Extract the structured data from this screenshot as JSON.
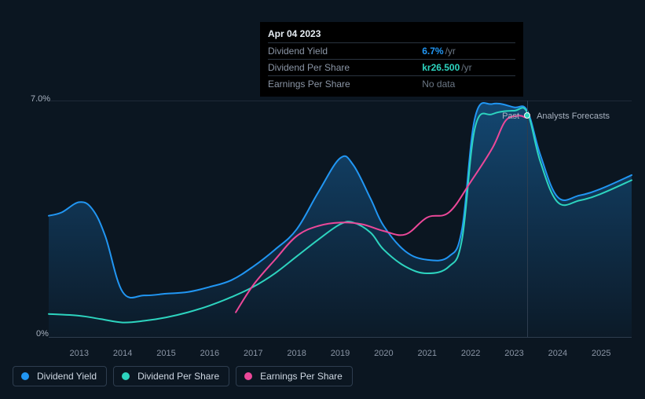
{
  "tooltip": {
    "date": "Apr 04 2023",
    "rows": [
      {
        "label": "Dividend Yield",
        "value": "6.7%",
        "unit": "/yr",
        "color": "#2196f3"
      },
      {
        "label": "Dividend Per Share",
        "value": "kr26.500",
        "unit": "/yr",
        "color": "#2dd4bf"
      },
      {
        "label": "Earnings Per Share",
        "value": "No data",
        "unit": "",
        "color": "#6b7785"
      }
    ]
  },
  "chart": {
    "type": "line-area",
    "background": "#0b1621",
    "grid_color": "#1f2a38",
    "axis_font_color": "#8a95a5",
    "ylim": [
      0,
      7
    ],
    "y_ticks": [
      {
        "v": 0,
        "label": "0%"
      },
      {
        "v": 7,
        "label": "7.0%"
      }
    ],
    "x_years": [
      2013,
      2014,
      2015,
      2016,
      2017,
      2018,
      2019,
      2020,
      2021,
      2022,
      2023,
      2024,
      2025
    ],
    "x_domain": [
      2012.3,
      2025.7
    ],
    "divider_x": 2023.3,
    "past_label": "Past",
    "future_label": "Analysts Forecasts",
    "series": [
      {
        "name": "Dividend Yield",
        "color": "#2196f3",
        "fill": true,
        "fill_gradient": [
          "rgba(33,150,243,0.35)",
          "rgba(33,150,243,0.02)"
        ],
        "line_width": 2,
        "points": [
          [
            2012.3,
            3.6
          ],
          [
            2012.6,
            3.7
          ],
          [
            2013.0,
            4.0
          ],
          [
            2013.3,
            3.8
          ],
          [
            2013.6,
            3.0
          ],
          [
            2014.0,
            1.35
          ],
          [
            2014.5,
            1.25
          ],
          [
            2015.0,
            1.3
          ],
          [
            2015.5,
            1.35
          ],
          [
            2016.0,
            1.5
          ],
          [
            2016.5,
            1.7
          ],
          [
            2017.0,
            2.1
          ],
          [
            2017.5,
            2.6
          ],
          [
            2018.0,
            3.2
          ],
          [
            2018.5,
            4.3
          ],
          [
            2019.0,
            5.3
          ],
          [
            2019.3,
            5.1
          ],
          [
            2019.7,
            4.1
          ],
          [
            2020.0,
            3.3
          ],
          [
            2020.5,
            2.55
          ],
          [
            2021.0,
            2.3
          ],
          [
            2021.5,
            2.4
          ],
          [
            2021.8,
            3.2
          ],
          [
            2022.1,
            6.5
          ],
          [
            2022.5,
            6.9
          ],
          [
            2023.0,
            6.8
          ],
          [
            2023.3,
            6.7
          ],
          [
            2023.6,
            5.4
          ],
          [
            2024.0,
            4.15
          ],
          [
            2024.5,
            4.2
          ],
          [
            2025.0,
            4.4
          ],
          [
            2025.7,
            4.8
          ]
        ]
      },
      {
        "name": "Dividend Per Share",
        "color": "#2dd4bf",
        "fill": false,
        "line_width": 2,
        "points": [
          [
            2012.3,
            0.7
          ],
          [
            2013.0,
            0.65
          ],
          [
            2013.5,
            0.55
          ],
          [
            2014.0,
            0.45
          ],
          [
            2014.5,
            0.5
          ],
          [
            2015.0,
            0.6
          ],
          [
            2015.5,
            0.75
          ],
          [
            2016.0,
            0.95
          ],
          [
            2016.5,
            1.2
          ],
          [
            2017.0,
            1.5
          ],
          [
            2017.5,
            1.9
          ],
          [
            2018.0,
            2.4
          ],
          [
            2018.5,
            2.9
          ],
          [
            2019.0,
            3.35
          ],
          [
            2019.3,
            3.4
          ],
          [
            2019.7,
            3.1
          ],
          [
            2020.0,
            2.6
          ],
          [
            2020.5,
            2.1
          ],
          [
            2021.0,
            1.9
          ],
          [
            2021.5,
            2.1
          ],
          [
            2021.8,
            2.9
          ],
          [
            2022.1,
            6.2
          ],
          [
            2022.5,
            6.6
          ],
          [
            2023.0,
            6.7
          ],
          [
            2023.3,
            6.65
          ],
          [
            2023.6,
            5.2
          ],
          [
            2024.0,
            4.0
          ],
          [
            2024.5,
            4.05
          ],
          [
            2025.0,
            4.25
          ],
          [
            2025.7,
            4.65
          ]
        ]
      },
      {
        "name": "Earnings Per Share",
        "color": "#ec4899",
        "fill": false,
        "line_width": 2,
        "points": [
          [
            2016.6,
            0.75
          ],
          [
            2017.0,
            1.55
          ],
          [
            2017.5,
            2.3
          ],
          [
            2018.0,
            3.0
          ],
          [
            2018.5,
            3.3
          ],
          [
            2019.0,
            3.4
          ],
          [
            2019.5,
            3.35
          ],
          [
            2020.0,
            3.15
          ],
          [
            2020.5,
            3.05
          ],
          [
            2021.0,
            3.55
          ],
          [
            2021.5,
            3.7
          ],
          [
            2022.0,
            4.6
          ],
          [
            2022.5,
            5.6
          ],
          [
            2022.8,
            6.4
          ],
          [
            2023.1,
            6.55
          ],
          [
            2023.25,
            6.5
          ]
        ]
      }
    ],
    "legend": [
      {
        "label": "Dividend Yield",
        "color": "#2196f3"
      },
      {
        "label": "Dividend Per Share",
        "color": "#2dd4bf"
      },
      {
        "label": "Earnings Per Share",
        "color": "#ec4899"
      }
    ],
    "legend_font_size": 12,
    "label_font_size": 11
  }
}
